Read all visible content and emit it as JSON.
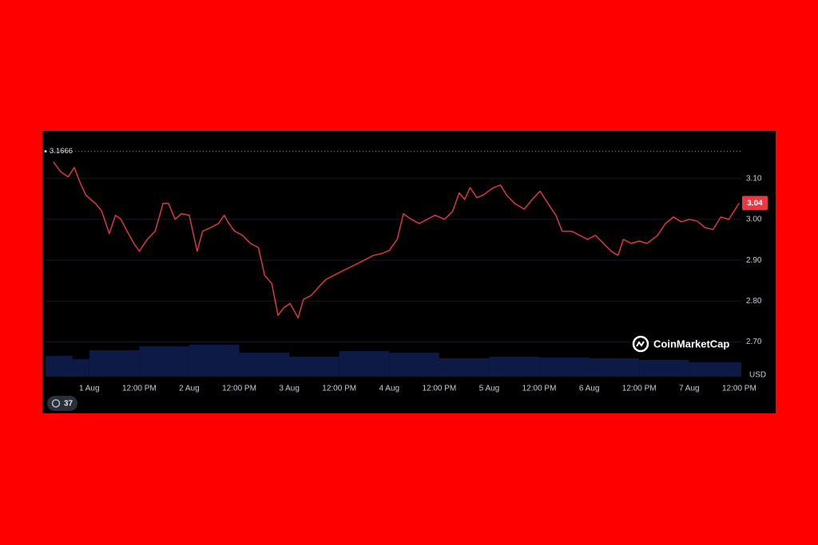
{
  "chart_data": {
    "type": "line",
    "x": [
      -8.6,
      -7.0,
      -5.1,
      -3.6,
      -2.3,
      -0.8,
      1.5,
      3.0,
      4.8,
      6.3,
      7.6,
      9.1,
      10.7,
      12.0,
      13.9,
      15.8,
      17.7,
      19.0,
      20.6,
      22.1,
      24.0,
      25.9,
      27.2,
      29.1,
      31.0,
      32.4,
      33.5,
      34.9,
      36.8,
      38.7,
      40.6,
      42.1,
      43.8,
      45.3,
      46.7,
      48.2,
      50.1,
      51.4,
      53.3,
      54.9,
      56.8,
      58.7,
      60.6,
      62.5,
      64.4,
      66.3,
      68.2,
      70.1,
      72.0,
      73.9,
      75.4,
      77.3,
      79.2,
      81.1,
      83.0,
      85.3,
      87.2,
      88.8,
      90.1,
      91.4,
      93.0,
      94.5,
      95.8,
      97.1,
      98.7,
      100.2,
      102.1,
      104.4,
      106.3,
      108.2,
      110.1,
      112.0,
      113.5,
      115.8,
      117.7,
      119.6,
      121.5,
      123.4,
      125.3,
      126.9,
      128.2,
      130.1,
      132.0,
      133.9,
      136.4,
      138.3,
      140.2,
      142.1,
      144.0,
      145.9,
      147.8,
      149.7,
      151.6,
      153.5,
      156.0
    ],
    "series": [
      {
        "color": "#ea3943",
        "values": [
          3.141,
          3.118,
          3.104,
          3.127,
          3.092,
          3.059,
          3.039,
          3.02,
          2.965,
          3.01,
          3.0,
          2.971,
          2.941,
          2.922,
          2.951,
          2.971,
          3.039,
          3.039,
          3.0,
          3.014,
          3.01,
          2.922,
          2.971,
          2.98,
          2.99,
          3.01,
          2.99,
          2.971,
          2.961,
          2.941,
          2.931,
          2.863,
          2.843,
          2.765,
          2.784,
          2.794,
          2.759,
          2.804,
          2.814,
          2.833,
          2.853,
          2.863,
          2.873,
          2.882,
          2.892,
          2.902,
          2.912,
          2.916,
          2.924,
          2.951,
          3.014,
          3.0,
          2.99,
          3.0,
          3.01,
          3.0,
          3.02,
          3.065,
          3.049,
          3.078,
          3.053,
          3.059,
          3.069,
          3.078,
          3.084,
          3.059,
          3.039,
          3.025,
          3.049,
          3.069,
          3.039,
          3.01,
          2.971,
          2.971,
          2.961,
          2.951,
          2.961,
          2.941,
          2.922,
          2.912,
          2.951,
          2.941,
          2.947,
          2.941,
          2.961,
          2.99,
          3.006,
          2.994,
          3.0,
          2.996,
          2.98,
          2.975,
          3.006,
          3.0,
          3.04
        ]
      }
    ],
    "volume": {
      "color": "#0d1a45",
      "x": [
        -10.5,
        -4,
        0,
        12,
        24,
        36,
        48,
        60,
        72,
        84,
        96,
        108,
        120,
        132,
        144
      ],
      "values": [
        26,
        22,
        33,
        38,
        40,
        30,
        25,
        32,
        30,
        23,
        25,
        24,
        23,
        21,
        18
      ],
      "y2lim": [
        0,
        100
      ]
    },
    "xlim": [
      -10.5,
      156.5
    ],
    "xticks": [
      {
        "value": 0,
        "label": "1 Aug"
      },
      {
        "value": 12,
        "label": "12:00 PM"
      },
      {
        "value": 24,
        "label": "2 Aug"
      },
      {
        "value": 36,
        "label": "12:00 PM"
      },
      {
        "value": 48,
        "label": "3 Aug"
      },
      {
        "value": 60,
        "label": "12:00 PM"
      },
      {
        "value": 72,
        "label": "4 Aug"
      },
      {
        "value": 84,
        "label": "12:00 PM"
      },
      {
        "value": 96,
        "label": "5 Aug"
      },
      {
        "value": 108,
        "label": "12:00 PM"
      },
      {
        "value": 120,
        "label": "6 Aug"
      },
      {
        "value": 132,
        "label": "12:00 PM"
      },
      {
        "value": 144,
        "label": "7 Aug"
      },
      {
        "value": 156,
        "label": "12:00 PM"
      }
    ],
    "ylim": [
      2.615,
      3.205
    ],
    "yticks": [
      {
        "value": 3.1,
        "label": "3.10"
      },
      {
        "value": 3.0,
        "label": "3.00"
      },
      {
        "value": 2.9,
        "label": "2.90"
      },
      {
        "value": 2.8,
        "label": "2.80"
      },
      {
        "value": 2.7,
        "label": "2.70"
      }
    ],
    "grid": true,
    "high_marker": 3.1666,
    "last_price": {
      "value": 3.04,
      "label": "3.04"
    },
    "y_unit": "USD",
    "watermark": "CoinMarketCap",
    "history_badge": 37
  }
}
